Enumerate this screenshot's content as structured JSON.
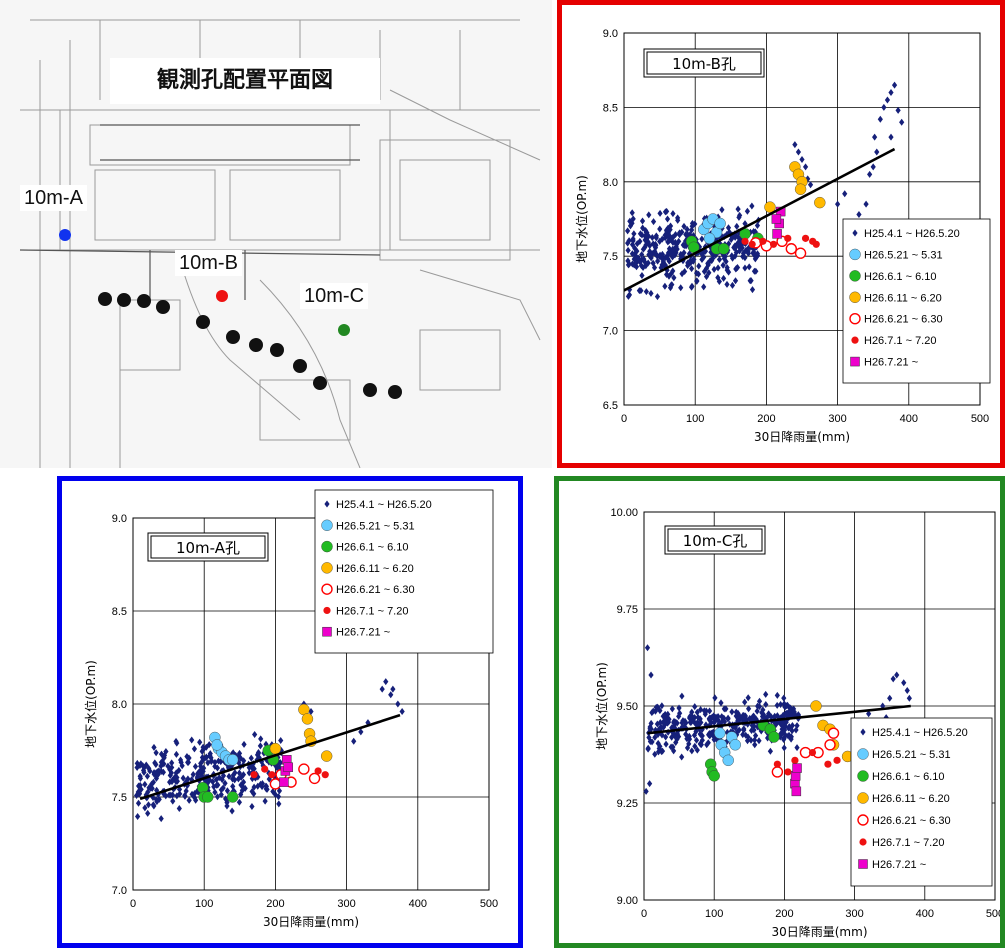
{
  "map": {
    "title": "観測孔配置平面図",
    "labels": {
      "a": "10m-A",
      "b": "10m-B",
      "c": "10m-C"
    }
  },
  "legend_entries": [
    {
      "label": "H25.4.1 ~ H26.5.20",
      "marker": "diamond",
      "color": "#16207a"
    },
    {
      "label": "H26.5.21 ~ 5.31",
      "marker": "circle",
      "color": "#66ccff"
    },
    {
      "label": "H26.6.1 ~ 6.10",
      "marker": "circle",
      "color": "#22bb22"
    },
    {
      "label": "H26.6.11 ~ 6.20",
      "marker": "circle",
      "color": "#ffb900"
    },
    {
      "label": "H26.6.21 ~ 6.30",
      "marker": "open-circle",
      "color": "#ff0000"
    },
    {
      "label": "H26.7.1 ~ 7.20",
      "marker": "small-circle",
      "color": "#ee1111"
    },
    {
      "label": "H26.7.21 ~",
      "marker": "square",
      "color": "#ee00cc"
    }
  ],
  "colors": {
    "red_frame": "#e50000",
    "blue_frame": "#0000ee",
    "green_frame": "#228822"
  },
  "chart_data": [
    {
      "id": "B",
      "type": "scatter",
      "title": "10m-B孔",
      "xlabel": "30日降雨量(mm)",
      "ylabel": "地下水位(OP.m)",
      "xlim": [
        0,
        500
      ],
      "ylim": [
        6.5,
        9.0
      ],
      "xticks": [
        "0",
        "100",
        "200",
        "300",
        "400",
        "500"
      ],
      "yticks": [
        "6.5",
        "7.0",
        "7.5",
        "8.0",
        "8.5",
        "9.0"
      ],
      "legend_placement": "right",
      "trend": [
        [
          0,
          7.27
        ],
        [
          380,
          8.22
        ]
      ],
      "series": [
        {
          "cloud": {
            "xmin": 5,
            "xmax": 190,
            "ymin": 7.15,
            "ymax": 7.85,
            "n": 380,
            "seed": 11
          }
        },
        {
          "points": [
            [
              112,
              7.68
            ],
            [
              118,
              7.72
            ],
            [
              125,
              7.75
            ],
            [
              130,
              7.66
            ],
            [
              120,
              7.62
            ],
            [
              135,
              7.72
            ]
          ]
        },
        {
          "points": [
            [
              95,
              7.6
            ],
            [
              98,
              7.56
            ],
            [
              130,
              7.55
            ],
            [
              140,
              7.55
            ],
            [
              170,
              7.65
            ],
            [
              188,
              7.62
            ]
          ]
        },
        {
          "points": [
            [
              205,
              7.83
            ],
            [
              240,
              8.1
            ],
            [
              245,
              8.05
            ],
            [
              250,
              8.0
            ],
            [
              248,
              7.95
            ],
            [
              275,
              7.86
            ]
          ]
        },
        {
          "points": [
            [
              222,
              7.6
            ],
            [
              235,
              7.55
            ],
            [
              248,
              7.52
            ],
            [
              200,
              7.57
            ],
            [
              185,
              7.59
            ]
          ]
        },
        {
          "points": [
            [
              170,
              7.6
            ],
            [
              180,
              7.58
            ],
            [
              195,
              7.6
            ],
            [
              210,
              7.58
            ],
            [
              230,
              7.62
            ],
            [
              255,
              7.62
            ],
            [
              265,
              7.6
            ],
            [
              270,
              7.58
            ]
          ]
        },
        {
          "points": [
            [
              215,
              7.65
            ],
            [
              218,
              7.72
            ],
            [
              220,
              7.8
            ],
            [
              214,
              7.75
            ]
          ]
        }
      ],
      "extra_diamonds": [
        [
          240,
          8.25
        ],
        [
          245,
          8.2
        ],
        [
          250,
          8.15
        ],
        [
          255,
          8.1
        ],
        [
          258,
          8.02
        ],
        [
          262,
          7.98
        ],
        [
          300,
          7.85
        ],
        [
          310,
          7.92
        ],
        [
          330,
          7.78
        ],
        [
          340,
          7.85
        ],
        [
          345,
          8.05
        ],
        [
          350,
          8.1
        ],
        [
          352,
          8.3
        ],
        [
          355,
          8.2
        ],
        [
          360,
          8.42
        ],
        [
          365,
          8.5
        ],
        [
          370,
          8.55
        ],
        [
          375,
          8.6
        ],
        [
          380,
          8.65
        ],
        [
          385,
          8.48
        ],
        [
          390,
          8.4
        ],
        [
          375,
          8.3
        ]
      ]
    },
    {
      "id": "A",
      "type": "scatter",
      "title": "10m-A孔",
      "xlabel": "30日降雨量(mm)",
      "ylabel": "地下水位(OP.m)",
      "xlim": [
        0,
        500
      ],
      "ylim": [
        7.0,
        9.0
      ],
      "xticks": [
        "0",
        "100",
        "200",
        "300",
        "400",
        "500"
      ],
      "yticks": [
        "7.0",
        "7.5",
        "8.0",
        "8.5",
        "9.0"
      ],
      "legend_placement": "top-right",
      "trend": [
        [
          10,
          7.49
        ],
        [
          375,
          7.94
        ]
      ],
      "series": [
        {
          "cloud": {
            "xmin": 5,
            "xmax": 210,
            "ymin": 7.35,
            "ymax": 7.85,
            "n": 330,
            "seed": 7
          }
        },
        {
          "points": [
            [
              115,
              7.82
            ],
            [
              120,
              7.76
            ],
            [
              125,
              7.74
            ],
            [
              130,
              7.72
            ],
            [
              135,
              7.7
            ],
            [
              140,
              7.7
            ],
            [
              118,
              7.78
            ]
          ]
        },
        {
          "points": [
            [
              98,
              7.55
            ],
            [
              100,
              7.5
            ],
            [
              105,
              7.5
            ],
            [
              140,
              7.5
            ],
            [
              190,
              7.75
            ],
            [
              197,
              7.7
            ]
          ]
        },
        {
          "points": [
            [
              200,
              7.76
            ],
            [
              240,
              7.97
            ],
            [
              245,
              7.92
            ],
            [
              248,
              7.84
            ],
            [
              250,
              7.8
            ],
            [
              272,
              7.72
            ]
          ]
        },
        {
          "points": [
            [
              200,
              7.57
            ],
            [
              208,
              7.62
            ],
            [
              222,
              7.58
            ],
            [
              240,
              7.65
            ],
            [
              255,
              7.6
            ]
          ]
        },
        {
          "points": [
            [
              170,
              7.62
            ],
            [
              185,
              7.65
            ],
            [
              195,
              7.62
            ],
            [
              260,
              7.64
            ],
            [
              270,
              7.62
            ]
          ]
        },
        {
          "points": [
            [
              212,
              7.58
            ],
            [
              214,
              7.64
            ],
            [
              216,
              7.7
            ],
            [
              218,
              7.66
            ]
          ]
        }
      ],
      "extra_diamonds": [
        [
          240,
          8.0
        ],
        [
          250,
          7.96
        ],
        [
          310,
          7.8
        ],
        [
          320,
          7.85
        ],
        [
          330,
          7.9
        ],
        [
          350,
          8.08
        ],
        [
          355,
          8.12
        ],
        [
          362,
          8.05
        ],
        [
          365,
          8.08
        ],
        [
          372,
          8.0
        ],
        [
          378,
          7.96
        ]
      ]
    },
    {
      "id": "C",
      "type": "scatter",
      "title": "10m-C孔",
      "xlabel": "30日降雨量(mm)",
      "ylabel": "地下水位(OP.m)",
      "xlim": [
        0,
        500
      ],
      "ylim": [
        9.0,
        10.0
      ],
      "xticks": [
        "0",
        "100",
        "200",
        "300",
        "400",
        "500"
      ],
      "yticks": [
        "9.00",
        "9.25",
        "9.50",
        "9.75",
        "10.00"
      ],
      "legend_placement": "right",
      "trend": [
        [
          5,
          9.43
        ],
        [
          380,
          9.5
        ]
      ],
      "series": [
        {
          "cloud": {
            "xmin": 5,
            "xmax": 220,
            "ymin": 9.35,
            "ymax": 9.53,
            "n": 360,
            "seed": 3
          }
        },
        {
          "points": [
            [
              110,
              9.4
            ],
            [
              115,
              9.38
            ],
            [
              120,
              9.36
            ],
            [
              125,
              9.42
            ],
            [
              130,
              9.4
            ],
            [
              108,
              9.43
            ]
          ]
        },
        {
          "points": [
            [
              95,
              9.35
            ],
            [
              97,
              9.33
            ],
            [
              100,
              9.32
            ],
            [
              170,
              9.45
            ],
            [
              180,
              9.44
            ],
            [
              185,
              9.42
            ]
          ]
        },
        {
          "points": [
            [
              245,
              9.5
            ],
            [
              255,
              9.45
            ],
            [
              265,
              9.44
            ],
            [
              270,
              9.4
            ],
            [
              290,
              9.37
            ]
          ]
        },
        {
          "points": [
            [
              230,
              9.38
            ],
            [
              265,
              9.4
            ],
            [
              270,
              9.43
            ],
            [
              248,
              9.38
            ],
            [
              190,
              9.33
            ]
          ]
        },
        {
          "points": [
            [
              190,
              9.35
            ],
            [
              205,
              9.33
            ],
            [
              215,
              9.36
            ],
            [
              240,
              9.38
            ],
            [
              262,
              9.35
            ],
            [
              275,
              9.36
            ]
          ]
        },
        {
          "points": [
            [
              215,
              9.3
            ],
            [
              216,
              9.32
            ],
            [
              217,
              9.28
            ],
            [
              218,
              9.34
            ]
          ]
        }
      ],
      "extra_diamonds": [
        [
          5,
          9.65
        ],
        [
          10,
          9.58
        ],
        [
          3,
          9.28
        ],
        [
          8,
          9.3
        ],
        [
          320,
          9.48
        ],
        [
          340,
          9.5
        ],
        [
          345,
          9.47
        ],
        [
          350,
          9.52
        ],
        [
          355,
          9.57
        ],
        [
          360,
          9.58
        ],
        [
          370,
          9.56
        ],
        [
          375,
          9.54
        ],
        [
          378,
          9.52
        ]
      ]
    }
  ]
}
